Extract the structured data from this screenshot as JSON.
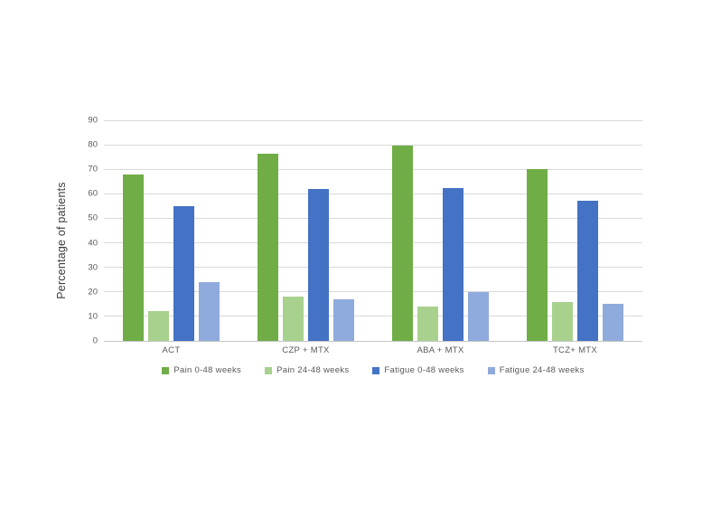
{
  "chart_data": {
    "type": "bar",
    "title": "",
    "xlabel": "",
    "ylabel": "Percentage of patients",
    "ylim": [
      0,
      90
    ],
    "ytick_step": 10,
    "ytick_labels": [
      "0",
      "10",
      "20",
      "30",
      "40",
      "50",
      "60",
      "70",
      "80",
      "90"
    ],
    "grid": true,
    "legend_position": "bottom",
    "categories": [
      "ACT",
      "CZP + MTX",
      "ABA + MTX",
      "TCZ+ MTX"
    ],
    "series": [
      {
        "name": "Pain 0-48 weeks",
        "color": "#70AD47",
        "values": [
          68,
          76.5,
          79.5,
          70
        ]
      },
      {
        "name": "Pain 24-48 weeks",
        "color": "#A9D18E",
        "values": [
          12,
          18,
          14,
          16
        ]
      },
      {
        "name": "Fatigue 0-48 weeks",
        "color": "#4472C4",
        "values": [
          55,
          62,
          62.5,
          57
        ]
      },
      {
        "name": "Fatigue 24-48 weeks",
        "color": "#8FAADC",
        "values": [
          24,
          17,
          20,
          15
        ]
      }
    ],
    "colors": {
      "gridline": "#D9D9D9",
      "axis_line": "#C6C6C6",
      "tick_text": "#595959",
      "axis_title_text": "#3B3B3B",
      "background": "#FFFFFF"
    }
  }
}
